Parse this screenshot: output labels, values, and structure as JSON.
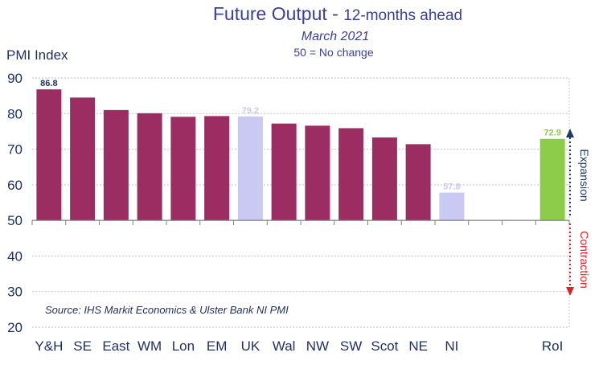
{
  "title": {
    "main": "Future Output - ",
    "main_suffix": "12-months ahead",
    "subtitle": "March 2021",
    "note": "50 = No change"
  },
  "source": "Source: IHS Markit Economics & Ulster Bank NI PMI",
  "side_labels": {
    "expansion": "Expansion",
    "contraction": "Contraction"
  },
  "colors": {
    "region": "#9b2d62",
    "uk": "#c9c9f3",
    "ni": "#c9c9f3",
    "roi": "#8ccc4a",
    "expansion_arrow": "#1f3864",
    "contraction_arrow": "#e02020",
    "grid": "#bfc3d6"
  },
  "chart_data": {
    "type": "bar",
    "ylabel": "PMI Index",
    "ylim": [
      20,
      90
    ],
    "yticks": [
      20,
      30,
      40,
      50,
      60,
      70,
      80,
      90
    ],
    "baseline": 50,
    "grid": true,
    "categories": [
      "Y&H",
      "SE",
      "East",
      "WM",
      "Lon",
      "EM",
      "UK",
      "Wal",
      "NW",
      "SW",
      "Scot",
      "NE",
      "NI",
      "",
      "",
      "RoI"
    ],
    "values": [
      86.8,
      84.5,
      81.0,
      80.1,
      79.1,
      79.3,
      79.2,
      77.2,
      76.6,
      75.9,
      73.3,
      71.4,
      57.8,
      null,
      null,
      72.9
    ],
    "bar_colors": [
      "region",
      "region",
      "region",
      "region",
      "region",
      "region",
      "uk",
      "region",
      "region",
      "region",
      "region",
      "region",
      "ni",
      null,
      null,
      "roi"
    ],
    "data_labels": [
      "86.8",
      "",
      "",
      "",
      "",
      "",
      "79.2",
      "",
      "",
      "",
      "",
      "",
      "57.8",
      "",
      "",
      "72.9"
    ],
    "data_label_colors": [
      "#1f2f5f",
      "",
      "",
      "",
      "",
      "",
      "#c9c9f3",
      "",
      "",
      "",
      "",
      "",
      "#c9c9f3",
      "",
      "",
      "#8ccc4a"
    ]
  }
}
